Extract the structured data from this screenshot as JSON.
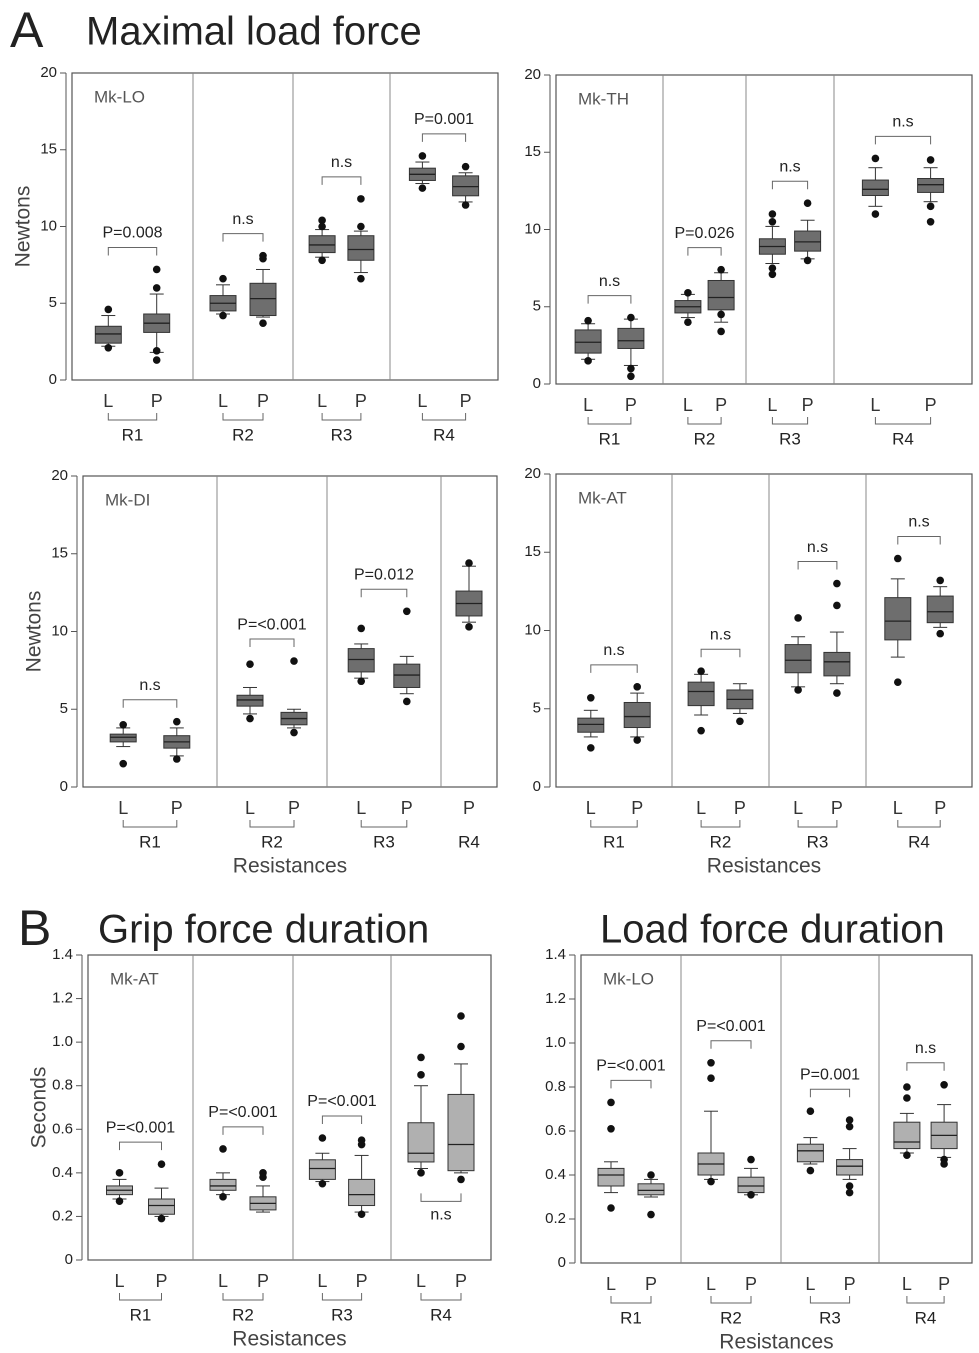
{
  "sections": [
    {
      "letter": "A",
      "title": "Maximal load force"
    },
    {
      "letter": "B",
      "title": "Grip force duration"
    },
    {
      "title": "Load force duration"
    }
  ],
  "chart_data": [
    {
      "type": "box",
      "title": "Mk-LO",
      "y_label": "Newtons",
      "ylim": [
        0,
        20
      ],
      "yticks": [
        0,
        5,
        10,
        15,
        20
      ],
      "color": "#6e6e6e",
      "groups": [
        {
          "name": "R1",
          "annotation": "P=0.008",
          "boxes": [
            {
              "name": "L",
              "low": 2.2,
              "q1": 2.4,
              "median": 3.0,
              "q3": 3.5,
              "high": 4.2,
              "outliers": [
                4.6,
                2.1
              ]
            },
            {
              "name": "P",
              "low": 1.8,
              "q1": 3.1,
              "median": 3.7,
              "q3": 4.3,
              "high": 5.6,
              "outliers": [
                7.2,
                6.0,
                1.9,
                1.3
              ]
            }
          ]
        },
        {
          "name": "R2",
          "annotation": "n.s",
          "boxes": [
            {
              "name": "L",
              "low": 4.3,
              "q1": 4.5,
              "median": 5.0,
              "q3": 5.5,
              "high": 6.2,
              "outliers": [
                6.6,
                4.2
              ]
            },
            {
              "name": "P",
              "low": 4.1,
              "q1": 4.2,
              "median": 5.3,
              "q3": 6.3,
              "high": 7.2,
              "outliers": [
                8.1,
                7.9,
                3.7
              ]
            }
          ]
        },
        {
          "name": "R3",
          "annotation": "n.s",
          "boxes": [
            {
              "name": "L",
              "low": 8.0,
              "q1": 8.3,
              "median": 8.8,
              "q3": 9.4,
              "high": 9.8,
              "outliers": [
                10.4,
                10.0,
                7.8
              ]
            },
            {
              "name": "P",
              "low": 7.0,
              "q1": 7.8,
              "median": 8.5,
              "q3": 9.4,
              "high": 9.7,
              "outliers": [
                11.8,
                10.0,
                6.6
              ]
            }
          ]
        },
        {
          "name": "R4",
          "annotation": "P=0.001",
          "boxes": [
            {
              "name": "L",
              "low": 12.8,
              "q1": 13.0,
              "median": 13.4,
              "q3": 13.8,
              "high": 14.2,
              "outliers": [
                14.6,
                12.5
              ]
            },
            {
              "name": "P",
              "low": 11.6,
              "q1": 12.0,
              "median": 12.6,
              "q3": 13.3,
              "high": 13.5,
              "outliers": [
                13.9,
                11.4
              ]
            }
          ]
        }
      ]
    },
    {
      "type": "box",
      "title": "Mk-TH",
      "ylim": [
        0,
        20
      ],
      "yticks": [
        0,
        5,
        10,
        15,
        20
      ],
      "color": "#6e6e6e",
      "groups": [
        {
          "name": "R1",
          "annotation": "n.s",
          "boxes": [
            {
              "name": "L",
              "low": 1.6,
              "q1": 2.0,
              "median": 2.7,
              "q3": 3.5,
              "high": 3.9,
              "outliers": [
                4.1,
                1.5
              ]
            },
            {
              "name": "P",
              "low": 1.2,
              "q1": 2.3,
              "median": 2.8,
              "q3": 3.6,
              "high": 4.2,
              "outliers": [
                4.3,
                1.0,
                0.5
              ]
            }
          ]
        },
        {
          "name": "R2",
          "annotation": "P=0.026",
          "boxes": [
            {
              "name": "L",
              "low": 4.3,
              "q1": 4.6,
              "median": 5.0,
              "q3": 5.4,
              "high": 5.8,
              "outliers": [
                5.9,
                4.0
              ]
            },
            {
              "name": "P",
              "low": 4.0,
              "q1": 4.8,
              "median": 5.6,
              "q3": 6.7,
              "high": 7.2,
              "outliers": [
                7.4,
                4.5,
                3.4
              ]
            }
          ]
        },
        {
          "name": "R3",
          "annotation": "n.s",
          "boxes": [
            {
              "name": "L",
              "low": 7.8,
              "q1": 8.4,
              "median": 8.9,
              "q3": 9.4,
              "high": 10.2,
              "outliers": [
                11.0,
                10.5,
                7.5,
                7.1
              ]
            },
            {
              "name": "P",
              "low": 8.1,
              "q1": 8.6,
              "median": 9.2,
              "q3": 9.9,
              "high": 10.6,
              "outliers": [
                11.7,
                8.0
              ]
            }
          ]
        },
        {
          "name": "R4",
          "annotation": "n.s",
          "boxes": [
            {
              "name": "L",
              "low": 11.5,
              "q1": 12.2,
              "median": 12.6,
              "q3": 13.2,
              "high": 14.0,
              "outliers": [
                14.6,
                11.0
              ]
            },
            {
              "name": "P",
              "low": 11.8,
              "q1": 12.4,
              "median": 12.9,
              "q3": 13.3,
              "high": 14.0,
              "outliers": [
                14.5,
                11.5,
                10.5
              ]
            }
          ]
        }
      ]
    },
    {
      "type": "box",
      "title": "Mk-DI",
      "y_label": "Newtons",
      "x_label": "Resistances",
      "ylim": [
        0,
        20
      ],
      "yticks": [
        0,
        5,
        10,
        15,
        20
      ],
      "color": "#6e6e6e",
      "groups": [
        {
          "name": "R1",
          "annotation": "n.s",
          "boxes": [
            {
              "name": "L",
              "low": 2.6,
              "q1": 2.9,
              "median": 3.2,
              "q3": 3.4,
              "high": 3.8,
              "outliers": [
                4.0,
                1.5
              ]
            },
            {
              "name": "P",
              "low": 2.0,
              "q1": 2.5,
              "median": 2.9,
              "q3": 3.3,
              "high": 3.8,
              "outliers": [
                4.2,
                1.8
              ]
            }
          ]
        },
        {
          "name": "R2",
          "annotation": "P=<0.001",
          "boxes": [
            {
              "name": "L",
              "low": 4.7,
              "q1": 5.2,
              "median": 5.6,
              "q3": 5.9,
              "high": 6.4,
              "outliers": [
                7.9,
                4.4
              ]
            },
            {
              "name": "P",
              "low": 3.8,
              "q1": 4.0,
              "median": 4.4,
              "q3": 4.8,
              "high": 5.0,
              "outliers": [
                8.1,
                3.5
              ]
            }
          ]
        },
        {
          "name": "R3",
          "annotation": "P=0.012",
          "boxes": [
            {
              "name": "L",
              "low": 7.0,
              "q1": 7.4,
              "median": 8.2,
              "q3": 8.9,
              "high": 9.2,
              "outliers": [
                10.2,
                6.8
              ]
            },
            {
              "name": "P",
              "low": 6.0,
              "q1": 6.4,
              "median": 7.2,
              "q3": 7.9,
              "high": 8.4,
              "outliers": [
                11.3,
                5.5
              ]
            }
          ]
        },
        {
          "name": "R4",
          "boxes": [
            {
              "name": "P",
              "low": 10.6,
              "q1": 11.0,
              "median": 11.8,
              "q3": 12.6,
              "high": 14.2,
              "outliers": [
                14.4,
                10.3
              ]
            }
          ]
        }
      ]
    },
    {
      "type": "box",
      "title": "Mk-AT",
      "x_label": "Resistances",
      "ylim": [
        0,
        20
      ],
      "yticks": [
        0,
        5,
        10,
        15,
        20
      ],
      "color": "#6e6e6e",
      "groups": [
        {
          "name": "R1",
          "annotation": "n.s",
          "boxes": [
            {
              "name": "L",
              "low": 3.2,
              "q1": 3.5,
              "median": 4.0,
              "q3": 4.4,
              "high": 4.9,
              "outliers": [
                5.7,
                2.5
              ]
            },
            {
              "name": "P",
              "low": 3.2,
              "q1": 3.8,
              "median": 4.5,
              "q3": 5.4,
              "high": 6.0,
              "outliers": [
                6.4,
                3.0
              ]
            }
          ]
        },
        {
          "name": "R2",
          "annotation": "n.s",
          "boxes": [
            {
              "name": "L",
              "low": 4.6,
              "q1": 5.2,
              "median": 6.1,
              "q3": 6.7,
              "high": 7.2,
              "outliers": [
                7.4,
                3.6
              ]
            },
            {
              "name": "P",
              "low": 4.7,
              "q1": 5.0,
              "median": 5.6,
              "q3": 6.2,
              "high": 6.6,
              "outliers": [
                4.2
              ]
            }
          ]
        },
        {
          "name": "R3",
          "annotation": "n.s",
          "boxes": [
            {
              "name": "L",
              "low": 6.4,
              "q1": 7.3,
              "median": 8.1,
              "q3": 9.1,
              "high": 9.6,
              "outliers": [
                10.8,
                6.2
              ]
            },
            {
              "name": "P",
              "low": 6.6,
              "q1": 7.1,
              "median": 8.0,
              "q3": 8.6,
              "high": 9.9,
              "outliers": [
                13.0,
                11.6,
                6.0
              ]
            }
          ]
        },
        {
          "name": "R4",
          "annotation": "n.s",
          "boxes": [
            {
              "name": "L",
              "low": 8.3,
              "q1": 9.4,
              "median": 10.6,
              "q3": 12.1,
              "high": 13.3,
              "outliers": [
                14.6,
                6.7
              ]
            },
            {
              "name": "P",
              "low": 10.2,
              "q1": 10.5,
              "median": 11.2,
              "q3": 12.2,
              "high": 12.8,
              "outliers": [
                13.2,
                9.8
              ]
            }
          ]
        }
      ]
    },
    {
      "type": "box",
      "title": "Mk-AT",
      "y_label": "Seconds",
      "x_label": "Resistances",
      "ylim": [
        0,
        1.4
      ],
      "yticks": [
        0,
        0.2,
        0.4,
        0.6,
        0.8,
        {
          "value": 1,
          "label": "1.0"
        },
        1.2,
        1.4
      ],
      "color": "#b0b0b0",
      "groups": [
        {
          "name": "R1",
          "annotation": "P=<0.001",
          "boxes": [
            {
              "name": "L",
              "low": 0.28,
              "q1": 0.3,
              "median": 0.32,
              "q3": 0.34,
              "high": 0.37,
              "outliers": [
                0.4,
                0.27
              ]
            },
            {
              "name": "P",
              "low": 0.2,
              "q1": 0.21,
              "median": 0.25,
              "q3": 0.28,
              "high": 0.33,
              "outliers": [
                0.44,
                0.19
              ]
            }
          ]
        },
        {
          "name": "R2",
          "annotation": "P=<0.001",
          "boxes": [
            {
              "name": "L",
              "low": 0.3,
              "q1": 0.32,
              "median": 0.34,
              "q3": 0.37,
              "high": 0.4,
              "outliers": [
                0.51,
                0.29
              ]
            },
            {
              "name": "P",
              "low": 0.22,
              "q1": 0.23,
              "median": 0.26,
              "q3": 0.29,
              "high": 0.34,
              "outliers": [
                0.4,
                0.38
              ]
            }
          ]
        },
        {
          "name": "R3",
          "annotation": "P=<0.001",
          "boxes": [
            {
              "name": "L",
              "low": 0.36,
              "q1": 0.37,
              "median": 0.42,
              "q3": 0.46,
              "high": 0.49,
              "outliers": [
                0.56,
                0.35
              ]
            },
            {
              "name": "P",
              "low": 0.22,
              "q1": 0.25,
              "median": 0.3,
              "q3": 0.37,
              "high": 0.48,
              "outliers": [
                0.55,
                0.53,
                0.21
              ]
            }
          ]
        },
        {
          "name": "R4",
          "annotation": "n.s",
          "annotation_side": "below",
          "boxes": [
            {
              "name": "L",
              "low": 0.42,
              "q1": 0.45,
              "median": 0.49,
              "q3": 0.63,
              "high": 0.8,
              "outliers": [
                0.93,
                0.85,
                0.4
              ]
            },
            {
              "name": "P",
              "low": 0.4,
              "q1": 0.41,
              "median": 0.53,
              "q3": 0.76,
              "high": 0.9,
              "outliers": [
                1.12,
                0.98,
                0.37
              ]
            }
          ]
        }
      ]
    },
    {
      "type": "box",
      "title": "Mk-LO",
      "x_label": "Resistances",
      "ylim": [
        0,
        1.4
      ],
      "yticks": [
        0,
        0.2,
        0.4,
        0.6,
        0.8,
        {
          "value": 1,
          "label": "1.0"
        },
        1.2,
        1.4
      ],
      "color": "#b0b0b0",
      "groups": [
        {
          "name": "R1",
          "annotation": "P=<0.001",
          "boxes": [
            {
              "name": "L",
              "low": 0.32,
              "q1": 0.35,
              "median": 0.4,
              "q3": 0.43,
              "high": 0.46,
              "outliers": [
                0.73,
                0.61,
                0.25
              ]
            },
            {
              "name": "P",
              "low": 0.3,
              "q1": 0.31,
              "median": 0.33,
              "q3": 0.36,
              "high": 0.38,
              "outliers": [
                0.4,
                0.22
              ]
            }
          ]
        },
        {
          "name": "R2",
          "annotation": "P=<0.001",
          "boxes": [
            {
              "name": "L",
              "low": 0.38,
              "q1": 0.4,
              "median": 0.45,
              "q3": 0.5,
              "high": 0.69,
              "outliers": [
                0.91,
                0.84,
                0.37
              ]
            },
            {
              "name": "P",
              "low": 0.31,
              "q1": 0.32,
              "median": 0.35,
              "q3": 0.39,
              "high": 0.43,
              "outliers": [
                0.47,
                0.31
              ]
            }
          ]
        },
        {
          "name": "R3",
          "annotation": "P=0.001",
          "boxes": [
            {
              "name": "L",
              "low": 0.45,
              "q1": 0.46,
              "median": 0.51,
              "q3": 0.54,
              "high": 0.57,
              "outliers": [
                0.69,
                0.42
              ]
            },
            {
              "name": "P",
              "low": 0.38,
              "q1": 0.4,
              "median": 0.44,
              "q3": 0.47,
              "high": 0.52,
              "outliers": [
                0.65,
                0.62,
                0.35,
                0.32
              ]
            }
          ]
        },
        {
          "name": "R4",
          "annotation": "n.s",
          "boxes": [
            {
              "name": "L",
              "low": 0.5,
              "q1": 0.52,
              "median": 0.55,
              "q3": 0.64,
              "high": 0.68,
              "outliers": [
                0.8,
                0.75,
                0.49
              ]
            },
            {
              "name": "P",
              "low": 0.48,
              "q1": 0.52,
              "median": 0.58,
              "q3": 0.64,
              "high": 0.72,
              "outliers": [
                0.81,
                0.47,
                0.45
              ]
            }
          ]
        }
      ]
    }
  ]
}
